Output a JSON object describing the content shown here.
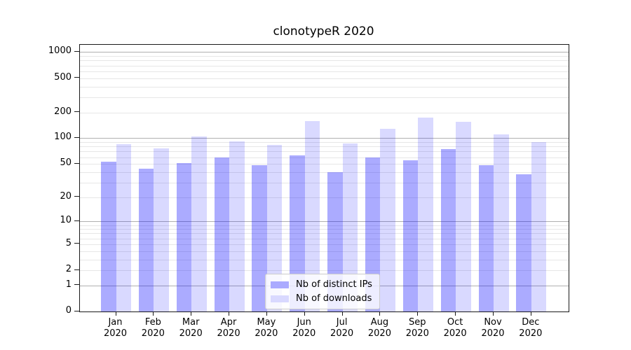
{
  "chart_data": {
    "type": "bar",
    "title": "clonotypeR 2020",
    "categories": [
      "Jan",
      "Feb",
      "Mar",
      "Apr",
      "May",
      "Jun",
      "Jul",
      "Aug",
      "Sep",
      "Oct",
      "Nov",
      "Dec"
    ],
    "x_tick_second_line": "2020",
    "series": [
      {
        "name": "Nb of distinct IPs",
        "color": "#aaaaff",
        "fill": "rgba(0,0,255,0.33)",
        "values": [
          53,
          44,
          51,
          60,
          48,
          63,
          40,
          60,
          55,
          74,
          48,
          38
        ]
      },
      {
        "name": "Nb of downloads",
        "color": "#d9d9ff",
        "fill": "rgba(0,0,255,0.15)",
        "values": [
          85,
          76,
          105,
          92,
          83,
          159,
          87,
          130,
          175,
          155,
          111,
          90
        ]
      }
    ],
    "scale": "log1p",
    "ylim": [
      0,
      1216
    ],
    "y_ticks": [
      0,
      1,
      2,
      5,
      10,
      20,
      50,
      100,
      200,
      500,
      1000
    ],
    "y_major_gridlines": [
      1,
      10,
      100,
      1000
    ],
    "y_minor_gridlines": [
      2,
      3,
      4,
      5,
      6,
      7,
      8,
      9,
      20,
      30,
      40,
      50,
      60,
      70,
      80,
      90,
      200,
      300,
      400,
      500,
      600,
      700,
      800,
      900
    ],
    "grid": true,
    "legend_position": "lower center",
    "colors": {
      "grid_major": "#b0b0b0",
      "grid_minor": "#e7e7e7",
      "spine": "#1a1a1a",
      "text": "#000000",
      "legend_border": "#cccccc"
    }
  }
}
